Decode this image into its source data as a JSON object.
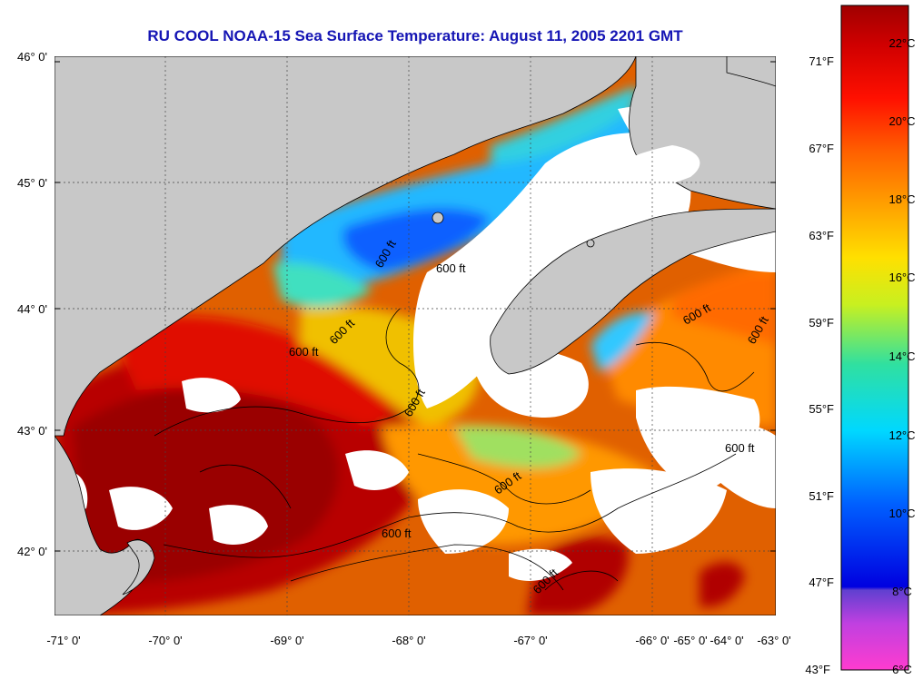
{
  "title": "RU COOL  NOAA-15  Sea Surface Temperature:  August 11, 2005 2201 GMT",
  "latitude_labels": [
    "46° 0'",
    "45° 0'",
    "44° 0'",
    "43° 0'",
    "42° 0'"
  ],
  "longitude_labels": [
    "-71° 0'",
    "-70° 0'",
    "-69° 0'",
    "-68° 0'",
    "-67° 0'",
    "-66° 0'",
    "-65° 0'",
    "-64° 0'",
    "-63° 0'"
  ],
  "fahrenheit_labels": [
    "71°F",
    "67°F",
    "63°F",
    "59°F",
    "55°F",
    "51°F",
    "47°F",
    "43°F"
  ],
  "celsius_labels": [
    "22°C",
    "20°C",
    "18°C",
    "16°C",
    "14°C",
    "12°C",
    "10°C",
    "8°C",
    "6°C"
  ],
  "contour_labels": [
    "600 ft",
    "600 ft",
    "600 ft",
    "600 ft",
    "600 ft",
    "600 ft",
    "600 ft",
    "600 ft",
    "600 ft",
    "600 ft",
    "600 ft"
  ],
  "colors": {
    "title": "#1515b4",
    "land": "#c8c8c8",
    "cloud": "#ffffff",
    "warm": "#b00000",
    "cool": "#20a0ff"
  }
}
